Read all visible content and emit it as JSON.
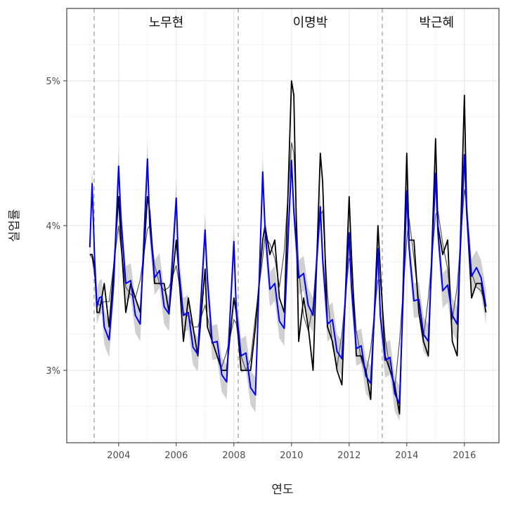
{
  "chart_data": {
    "type": "line",
    "xlabel": "연도",
    "ylabel": "실업률",
    "xlim": [
      2002.2,
      2017.2
    ],
    "ylim": [
      2.5,
      5.5
    ],
    "x_ticks": [
      "2004",
      "2006",
      "2008",
      "2010",
      "2012",
      "2014",
      "2016"
    ],
    "y_ticks": [
      "3%",
      "4%",
      "5%"
    ],
    "grid": true,
    "eras": [
      {
        "label": "노무현",
        "start": 2003.15,
        "end": 2008.15
      },
      {
        "label": "이명박",
        "start": 2008.15,
        "end": 2013.15
      },
      {
        "label": "박근혜",
        "start": 2013.15,
        "end": 2016.92
      }
    ],
    "era_boundaries": [
      2003.15,
      2008.15,
      2013.15
    ],
    "series": [
      {
        "role": "actual",
        "color": "#000000",
        "x": [
          2003.0,
          2003.08,
          2003.17,
          2003.25,
          2003.33,
          2003.5,
          2003.67,
          2003.83,
          2004.0,
          2004.08,
          2004.25,
          2004.42,
          2004.58,
          2004.75,
          2005.0,
          2005.08,
          2005.25,
          2005.42,
          2005.58,
          2005.75,
          2006.0,
          2006.08,
          2006.25,
          2006.42,
          2006.58,
          2006.75,
          2007.0,
          2007.08,
          2007.25,
          2007.42,
          2007.58,
          2007.75,
          2008.0,
          2008.08,
          2008.25,
          2008.42,
          2008.58,
          2008.75,
          2009.0,
          2009.08,
          2009.25,
          2009.42,
          2009.58,
          2009.75,
          2010.0,
          2010.08,
          2010.25,
          2010.42,
          2010.58,
          2010.75,
          2011.0,
          2011.08,
          2011.25,
          2011.42,
          2011.58,
          2011.75,
          2012.0,
          2012.08,
          2012.25,
          2012.42,
          2012.58,
          2012.75,
          2013.0,
          2013.08,
          2013.25,
          2013.42,
          2013.58,
          2013.75,
          2014.0,
          2014.08,
          2014.25,
          2014.42,
          2014.58,
          2014.75,
          2015.0,
          2015.08,
          2015.25,
          2015.42,
          2015.58,
          2015.75,
          2016.0,
          2016.08,
          2016.25,
          2016.42,
          2016.58,
          2016.75
        ],
        "values": [
          3.8,
          3.8,
          3.7,
          3.4,
          3.4,
          3.6,
          3.3,
          3.7,
          4.2,
          3.9,
          3.4,
          3.6,
          3.5,
          3.4,
          4.2,
          4.1,
          3.6,
          3.6,
          3.6,
          3.4,
          3.9,
          3.7,
          3.2,
          3.5,
          3.3,
          3.1,
          3.7,
          3.3,
          3.2,
          3.1,
          3.0,
          3.0,
          3.5,
          3.4,
          3.0,
          3.0,
          3.0,
          3.3,
          3.9,
          4.0,
          3.8,
          3.9,
          3.5,
          3.4,
          5.0,
          4.9,
          3.2,
          3.5,
          3.3,
          3.0,
          4.5,
          4.3,
          3.3,
          3.2,
          3.0,
          2.9,
          4.2,
          3.8,
          3.1,
          3.1,
          3.0,
          2.8,
          4.0,
          3.7,
          3.1,
          3.0,
          2.9,
          2.7,
          4.5,
          3.9,
          3.9,
          3.4,
          3.2,
          3.1,
          4.6,
          4.0,
          3.8,
          3.9,
          3.2,
          3.1,
          4.9,
          4.1,
          3.5,
          3.6,
          3.6,
          3.4
        ]
      },
      {
        "role": "fitted",
        "color": "#0000ee",
        "x": [
          2003.0,
          2003.08,
          2003.17,
          2003.25,
          2003.33,
          2003.42,
          2003.5,
          2003.67,
          2003.83,
          2004.0,
          2004.08,
          2004.25,
          2004.42,
          2004.58,
          2004.75,
          2005.0,
          2005.08,
          2005.25,
          2005.42,
          2005.58,
          2005.75,
          2006.0,
          2006.08,
          2006.25,
          2006.42,
          2006.58,
          2006.75,
          2007.0,
          2007.08,
          2007.25,
          2007.42,
          2007.58,
          2007.75,
          2008.0,
          2008.08,
          2008.25,
          2008.42,
          2008.58,
          2008.75,
          2009.0,
          2009.08,
          2009.25,
          2009.42,
          2009.58,
          2009.75,
          2010.0,
          2010.08,
          2010.25,
          2010.42,
          2010.58,
          2010.75,
          2011.0,
          2011.08,
          2011.25,
          2011.42,
          2011.58,
          2011.75,
          2012.0,
          2012.08,
          2012.25,
          2012.42,
          2012.58,
          2012.75,
          2013.0,
          2013.08,
          2013.25,
          2013.42,
          2013.58,
          2013.75,
          2014.0,
          2014.08,
          2014.25,
          2014.42,
          2014.58,
          2014.75,
          2015.0,
          2015.08,
          2015.25,
          2015.42,
          2015.58,
          2015.75,
          2016.0,
          2016.08,
          2016.25,
          2016.42,
          2016.58,
          2016.75
        ],
        "values": [
          3.85,
          4.29,
          3.75,
          3.44,
          3.5,
          3.51,
          3.3,
          3.21,
          3.6,
          4.41,
          4.05,
          3.6,
          3.62,
          3.38,
          3.32,
          4.46,
          4.0,
          3.64,
          3.69,
          3.44,
          3.39,
          4.19,
          3.71,
          3.38,
          3.4,
          3.16,
          3.11,
          3.97,
          3.63,
          3.19,
          3.2,
          2.97,
          2.92,
          3.89,
          3.43,
          3.1,
          3.12,
          2.88,
          2.83,
          4.37,
          3.98,
          3.56,
          3.6,
          3.34,
          3.29,
          4.45,
          4.1,
          3.64,
          3.67,
          3.45,
          3.38,
          4.13,
          3.77,
          3.32,
          3.35,
          3.13,
          3.08,
          3.95,
          3.57,
          3.15,
          3.17,
          2.96,
          2.91,
          3.84,
          3.38,
          3.07,
          3.09,
          2.84,
          2.77,
          4.24,
          3.85,
          3.48,
          3.49,
          3.25,
          3.2,
          4.36,
          3.96,
          3.55,
          3.59,
          3.38,
          3.32,
          4.49,
          4.08,
          3.65,
          3.71,
          3.64,
          3.44
        ]
      }
    ]
  }
}
